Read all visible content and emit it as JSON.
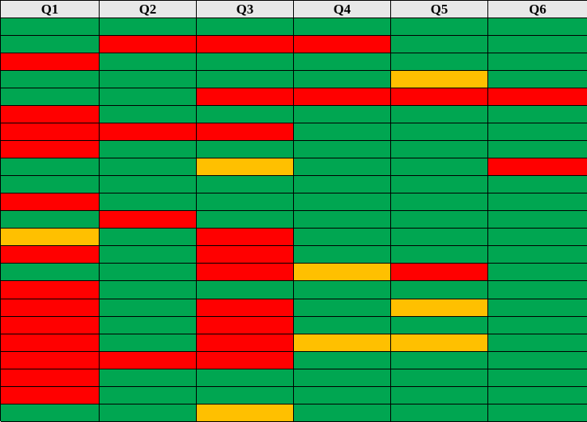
{
  "chart_data": {
    "type": "heatmap",
    "columns": [
      "Q1",
      "Q2",
      "Q3",
      "Q4",
      "Q5",
      "Q6"
    ],
    "colors": {
      "G": "#00a651",
      "R": "#ff0000",
      "Y": "#ffc000"
    },
    "rows": [
      [
        "G",
        "G",
        "G",
        "G",
        "G",
        "G"
      ],
      [
        "G",
        "R",
        "R",
        "R",
        "G",
        "G"
      ],
      [
        "R",
        "G",
        "G",
        "G",
        "G",
        "G"
      ],
      [
        "G",
        "G",
        "G",
        "G",
        "Y",
        "G"
      ],
      [
        "G",
        "G",
        "R",
        "R",
        "R",
        "R"
      ],
      [
        "R",
        "G",
        "G",
        "G",
        "G",
        "G"
      ],
      [
        "R",
        "R",
        "R",
        "G",
        "G",
        "G"
      ],
      [
        "R",
        "G",
        "G",
        "G",
        "G",
        "G"
      ],
      [
        "G",
        "G",
        "Y",
        "G",
        "G",
        "R"
      ],
      [
        "G",
        "G",
        "G",
        "G",
        "G",
        "G"
      ],
      [
        "R",
        "G",
        "G",
        "G",
        "G",
        "G"
      ],
      [
        "G",
        "R",
        "G",
        "G",
        "G",
        "G"
      ],
      [
        "Y",
        "G",
        "R",
        "G",
        "G",
        "G"
      ],
      [
        "R",
        "G",
        "R",
        "G",
        "G",
        "G"
      ],
      [
        "G",
        "G",
        "R",
        "Y",
        "R",
        "G"
      ],
      [
        "R",
        "G",
        "G",
        "G",
        "G",
        "G"
      ],
      [
        "R",
        "G",
        "R",
        "G",
        "Y",
        "G"
      ],
      [
        "R",
        "G",
        "R",
        "G",
        "G",
        "G"
      ],
      [
        "R",
        "G",
        "R",
        "Y",
        "Y",
        "G"
      ],
      [
        "R",
        "R",
        "R",
        "G",
        "G",
        "G"
      ],
      [
        "R",
        "G",
        "G",
        "G",
        "G",
        "G"
      ],
      [
        "R",
        "G",
        "G",
        "G",
        "G",
        "G"
      ],
      [
        "G",
        "G",
        "Y",
        "G",
        "G",
        "G"
      ]
    ]
  }
}
